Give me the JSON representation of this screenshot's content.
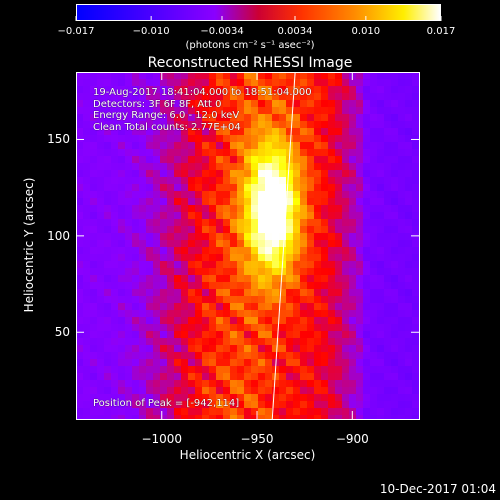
{
  "chart_data": {
    "type": "heatmap",
    "title": "Reconstructed RHESSI Image",
    "xlabel": "Heliocentric X (arcsec)",
    "ylabel": "Heliocentric Y (arcsec)",
    "xlim": [
      -1045,
      -865
    ],
    "ylim": [
      5,
      185
    ],
    "x_ticks": [
      -1000,
      -950,
      -900
    ],
    "x_tick_labels": [
      "−1000",
      "−950",
      "−900"
    ],
    "y_ticks": [
      50,
      100,
      150
    ],
    "y_tick_labels": [
      "50",
      "100",
      "150"
    ],
    "colorbar": {
      "range": [
        -0.017,
        0.017
      ],
      "ticks": [
        -0.017,
        -0.01,
        -0.0034,
        0.0034,
        0.01,
        0.017
      ],
      "tick_labels": [
        "−0.017",
        "−0.010",
        "−0.0034",
        "0.0034",
        "0.010",
        "0.017"
      ],
      "units_label": "(photons cm⁻² s⁻¹ asec⁻²)",
      "colors": [
        "#0000ff",
        "#8a00ff",
        "#ff0000",
        "#ff8000",
        "#ffff00",
        "#ffffff"
      ]
    },
    "annotations": [
      "19-Aug-2017 18:41:04.000 to 18:51:04.000",
      "Detectors: 3F 6F 8F, Att 0",
      "Energy Range: 6.0 - 12.0 keV",
      "Clean    Total counts: 2.77E+04"
    ],
    "peak_label": "Position of Peak = [-942,114]",
    "peak": {
      "x": -942,
      "y": 114
    },
    "limb_line": [
      [
        -942,
        5
      ],
      [
        -930,
        185
      ]
    ],
    "grid": false,
    "legend": "none"
  },
  "footer": {
    "timestamp": "10-Dec-2017 01:04"
  }
}
